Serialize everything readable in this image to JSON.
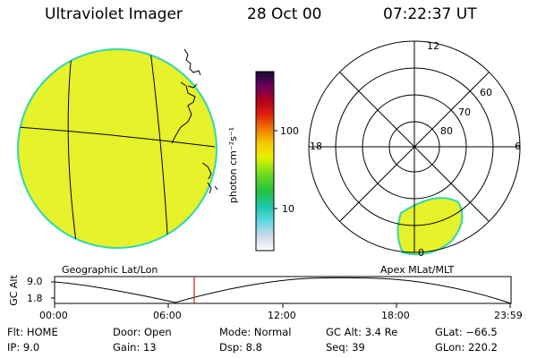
{
  "header": {
    "instrument": "Ultraviolet Imager",
    "date": "28 Oct 00",
    "time": "07:22:37 UT"
  },
  "colors": {
    "disk_fill": "#e6f22a",
    "disk_edge": "#2fd6b4",
    "grid_line": "#000000",
    "cursor": "#c81e1e"
  },
  "colorbar": {
    "label": "photon cm⁻²s⁻¹",
    "ticks": [
      "100",
      "10"
    ]
  },
  "left_panel": {
    "caption": "Geographic Lat/Lon"
  },
  "right_panel": {
    "caption": "Apex MLat/MLT",
    "mlt_labels": {
      "top": "12",
      "left": "18",
      "right": "6",
      "bottom": "0"
    },
    "lat_labels": [
      "60",
      "70",
      "80"
    ]
  },
  "altitude_plot": {
    "ylabel": "GC Alt",
    "y_ticks": [
      "9.0",
      "1.8"
    ],
    "x_ticks": [
      "00:00",
      "06:00",
      "12:00",
      "18:00",
      "23:59"
    ]
  },
  "status": {
    "flt": "Flt: HOME",
    "ip": "IP:  9.0",
    "door": "Door: Open",
    "gain": "Gain: 13",
    "mode": "Mode: Normal",
    "dsp": "Dsp:    8.8",
    "gc_alt": "GC Alt: 3.4 Re",
    "seq": "Seq: 39",
    "glat": "GLat: −66.5",
    "glon": "GLon: 220.2"
  }
}
